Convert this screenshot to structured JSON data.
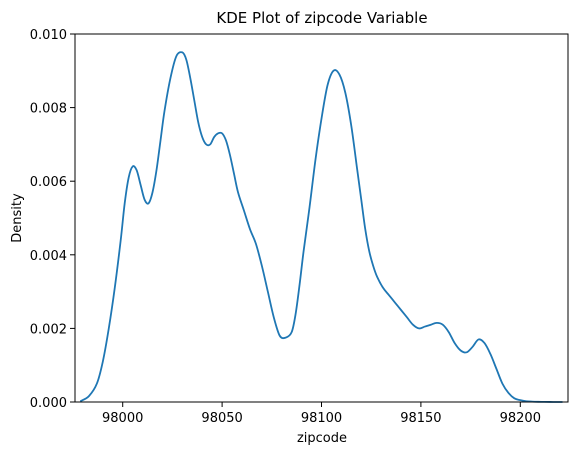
{
  "chart_data": {
    "type": "line",
    "title": "KDE Plot of zipcode Variable",
    "xlabel": "zipcode",
    "ylabel": "Density",
    "xlim": [
      97976,
      98224
    ],
    "ylim": [
      0,
      0.01
    ],
    "x_ticks": [
      98000,
      98050,
      98100,
      98150,
      98200
    ],
    "x_tick_labels": [
      "98000",
      "98050",
      "98100",
      "98150",
      "98200"
    ],
    "y_ticks": [
      0,
      0.002,
      0.004,
      0.006,
      0.008,
      0.01
    ],
    "y_tick_labels": [
      "0.000",
      "0.002",
      "0.004",
      "0.006",
      "0.008",
      "0.010"
    ],
    "grid": false,
    "line_color": "#1f77b4",
    "series": [
      {
        "x": [
          97979,
          97983,
          97987,
          97990,
          97993,
          97996,
          97999,
          98001,
          98003,
          98005,
          98007,
          98009,
          98011,
          98013,
          98015,
          98017,
          98019,
          98021,
          98024,
          98027,
          98030,
          98032,
          98034,
          98036,
          98038,
          98040,
          98042,
          98044,
          98046,
          98048,
          98050,
          98052,
          98054,
          98056,
          98058,
          98061,
          98064,
          98067,
          98070,
          98073,
          98076,
          98079,
          98082,
          98085,
          98087,
          98089,
          98091,
          98094,
          98097,
          98100,
          98103,
          98106,
          98109,
          98112,
          98115,
          98118,
          98120,
          98122,
          98124,
          98126,
          98128,
          98131,
          98134,
          98137,
          98140,
          98143,
          98146,
          98149,
          98152,
          98155,
          98158,
          98161,
          98164,
          98167,
          98170,
          98173,
          98176,
          98179,
          98182,
          98185,
          98188,
          98191,
          98194,
          98197,
          98200,
          98203,
          98206,
          98209,
          98212,
          98215,
          98218,
          98221
        ],
        "y": [
          3e-05,
          0.00016,
          0.0005,
          0.0011,
          0.002,
          0.0031,
          0.0044,
          0.0054,
          0.0061,
          0.0064,
          0.0063,
          0.0059,
          0.0055,
          0.0054,
          0.0057,
          0.0063,
          0.0071,
          0.0079,
          0.0088,
          0.0094,
          0.0095,
          0.0093,
          0.0088,
          0.0082,
          0.0076,
          0.0072,
          0.007,
          0.007,
          0.0072,
          0.0073,
          0.0073,
          0.0071,
          0.0067,
          0.0062,
          0.0057,
          0.0052,
          0.0047,
          0.0043,
          0.0037,
          0.003,
          0.0023,
          0.0018,
          0.00175,
          0.0019,
          0.0024,
          0.0032,
          0.0041,
          0.0053,
          0.0066,
          0.0077,
          0.0086,
          0.009,
          0.0089,
          0.0084,
          0.0075,
          0.0063,
          0.0055,
          0.0047,
          0.0041,
          0.0037,
          0.0034,
          0.0031,
          0.0029,
          0.0027,
          0.0025,
          0.0023,
          0.0021,
          0.002,
          0.00205,
          0.0021,
          0.00215,
          0.0021,
          0.0019,
          0.0016,
          0.0014,
          0.00135,
          0.0015,
          0.0017,
          0.0016,
          0.0013,
          0.0009,
          0.0005,
          0.00025,
          0.0001,
          5e-05,
          2e-05,
          1e-05,
          5e-06,
          2.5e-06,
          1e-06,
          5e-07,
          2e-07
        ]
      }
    ]
  }
}
